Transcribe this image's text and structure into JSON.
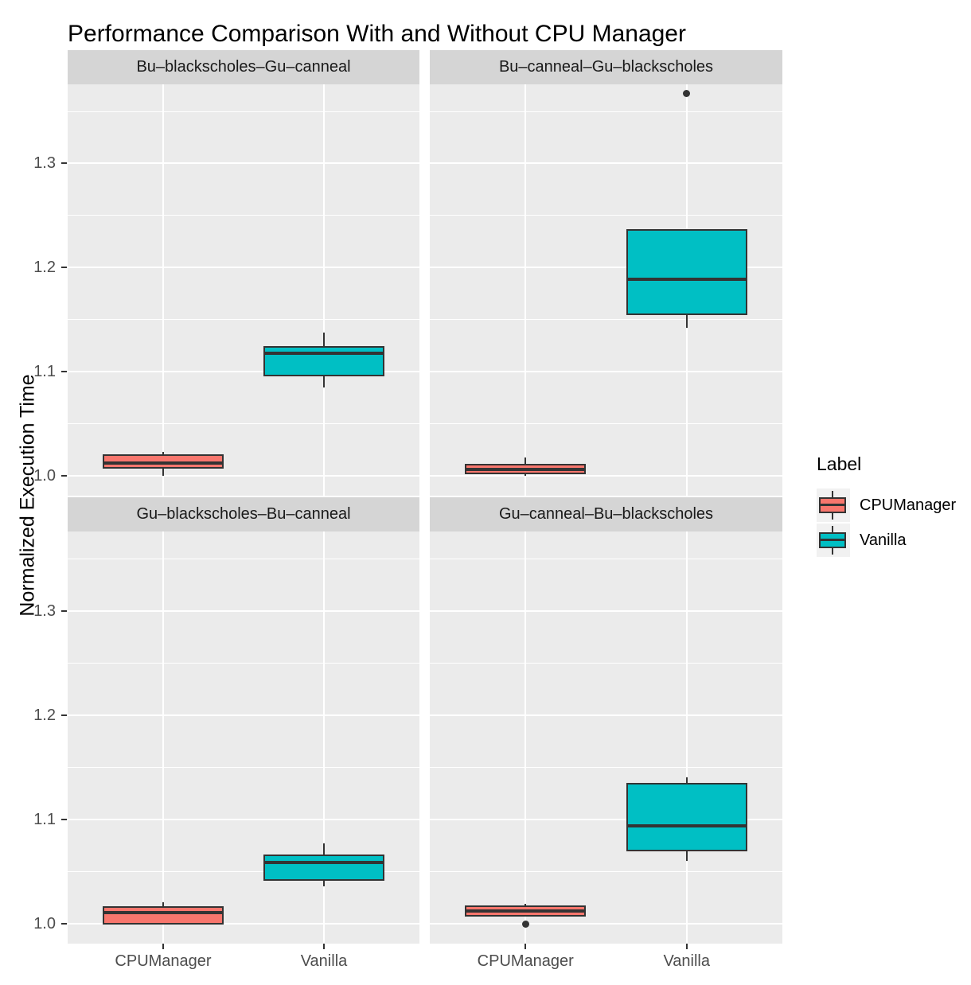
{
  "chart_data": {
    "type": "boxplot",
    "title": "Performance Comparison With and Without CPU Manager",
    "ylabel": "Normalized Execution Time",
    "x_categories": [
      "CPUManager",
      "Vanilla"
    ],
    "y_axis": {
      "ticks": [
        1.0,
        1.1,
        1.2,
        1.3
      ],
      "tick_labels": [
        "1.0",
        "1.1",
        "1.2",
        "1.3"
      ],
      "minor_ticks": [
        1.05,
        1.15,
        1.25,
        1.35
      ],
      "ylim": [
        0.981,
        1.376
      ],
      "grid": "major-and-minor-white"
    },
    "legend": {
      "title": "Label",
      "position": "right",
      "entries": [
        {
          "label": "CPUManager",
          "color": "#F8766D"
        },
        {
          "label": "Vanilla",
          "color": "#00BFC4"
        }
      ]
    },
    "facets": [
      {
        "label": "Bu–blackscholes–Gu–canneal",
        "row": 0,
        "col": 0,
        "boxes": [
          {
            "category": "CPUManager",
            "color": "#F8766D",
            "whisker_low": 1.0,
            "q1": 1.008,
            "median": 1.012,
            "q3": 1.02,
            "whisker_high": 1.023,
            "outliers": []
          },
          {
            "category": "Vanilla",
            "color": "#00BFC4",
            "whisker_low": 1.085,
            "q1": 1.096,
            "median": 1.118,
            "q3": 1.124,
            "whisker_high": 1.138,
            "outliers": []
          }
        ]
      },
      {
        "label": "Bu–canneal–Gu–blackscholes",
        "row": 0,
        "col": 1,
        "boxes": [
          {
            "category": "CPUManager",
            "color": "#F8766D",
            "whisker_low": 1.0,
            "q1": 1.002,
            "median": 1.006,
            "q3": 1.011,
            "whisker_high": 1.018,
            "outliers": []
          },
          {
            "category": "Vanilla",
            "color": "#00BFC4",
            "whisker_low": 1.142,
            "q1": 1.155,
            "median": 1.189,
            "q3": 1.236,
            "whisker_high": 1.236,
            "outliers": [
              1.367
            ]
          }
        ]
      },
      {
        "label": "Gu–blackscholes–Bu–canneal",
        "row": 1,
        "col": 0,
        "boxes": [
          {
            "category": "CPUManager",
            "color": "#F8766D",
            "whisker_low": 1.0,
            "q1": 1.0,
            "median": 1.011,
            "q3": 1.016,
            "whisker_high": 1.021,
            "outliers": []
          },
          {
            "category": "Vanilla",
            "color": "#00BFC4",
            "whisker_low": 1.036,
            "q1": 1.042,
            "median": 1.059,
            "q3": 1.066,
            "whisker_high": 1.077,
            "outliers": []
          }
        ]
      },
      {
        "label": "Gu–canneal–Bu–blackscholes",
        "row": 1,
        "col": 1,
        "boxes": [
          {
            "category": "CPUManager",
            "color": "#F8766D",
            "whisker_low": 1.008,
            "q1": 1.008,
            "median": 1.012,
            "q3": 1.017,
            "whisker_high": 1.019,
            "outliers": [
              1.0
            ]
          },
          {
            "category": "Vanilla",
            "color": "#00BFC4",
            "whisker_low": 1.06,
            "q1": 1.07,
            "median": 1.094,
            "q3": 1.134,
            "whisker_high": 1.14,
            "outliers": []
          }
        ]
      }
    ],
    "theme_colors": {
      "panel_background": "#EBEBEB",
      "strip_background": "#D5D5D5",
      "gridline": "#FFFFFF",
      "box_line": "#333333",
      "axis_text": "#4D4D4D",
      "title_text": "#000000"
    }
  }
}
